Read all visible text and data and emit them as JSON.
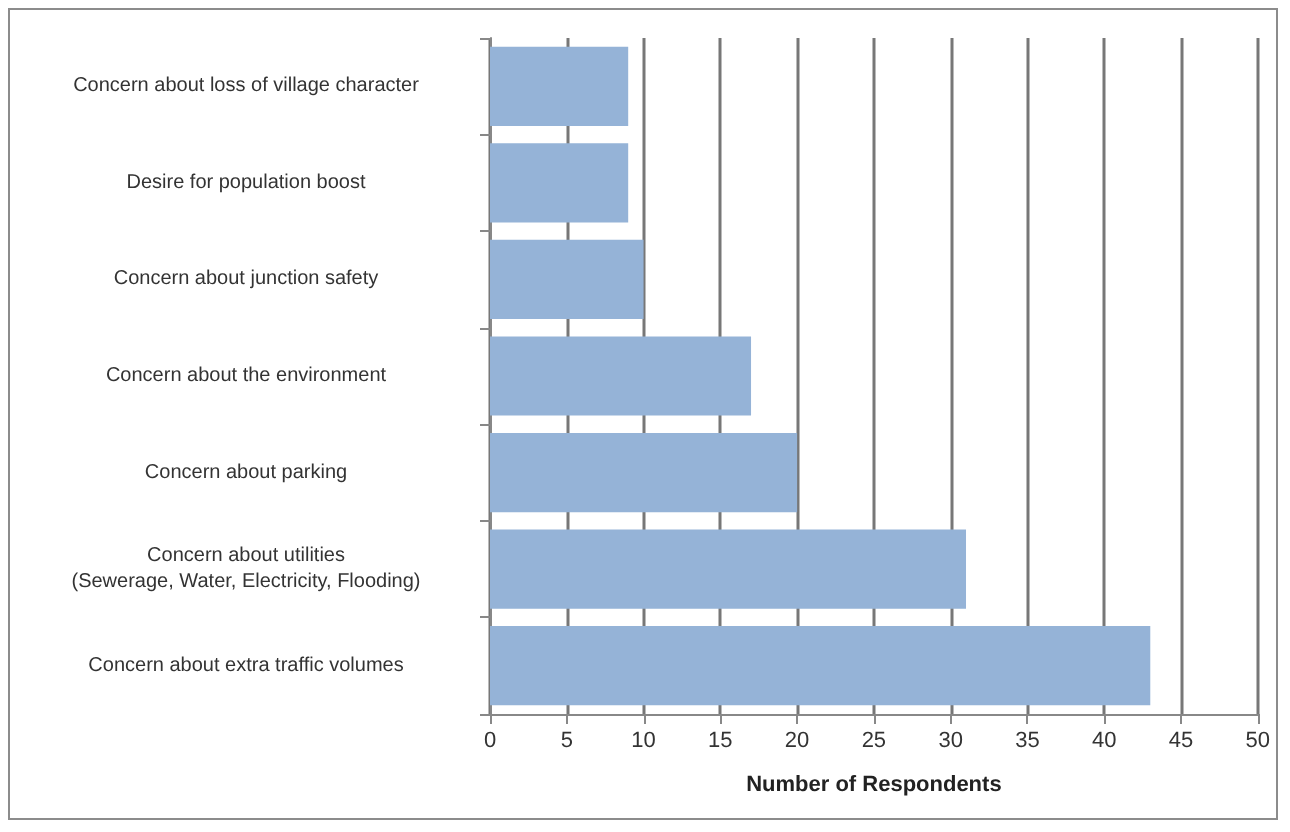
{
  "chart_data": {
    "type": "bar",
    "orientation": "horizontal",
    "xlabel": "Number of Respondents",
    "categories": [
      "Concern about loss of village character",
      "Desire for population boost",
      "Concern about junction safety",
      "Concern about the environment",
      "Concern about parking",
      "Concern about utilities\n(Sewerage, Water, Electricity, Flooding)",
      "Concern about extra traffic volumes"
    ],
    "values": [
      9,
      9,
      10,
      17,
      20,
      31,
      43
    ],
    "color": "#95b3d7",
    "xlim": [
      0,
      50
    ],
    "xticks": [
      0,
      5,
      10,
      15,
      20,
      25,
      30,
      35,
      40,
      45,
      50
    ],
    "grid": "x"
  }
}
